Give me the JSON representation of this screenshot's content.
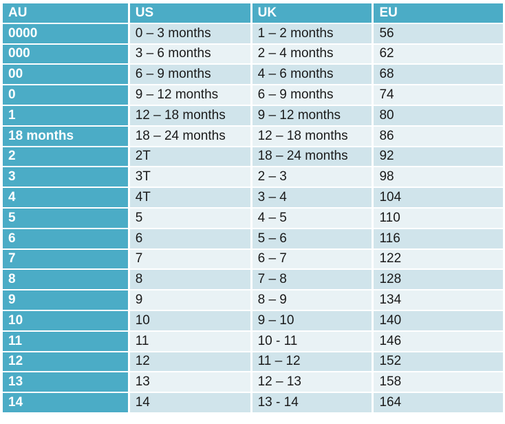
{
  "table": {
    "header": [
      "AU",
      "US",
      "UK",
      "EU"
    ],
    "rows": [
      [
        "0000",
        "0 – 3 months",
        "1 – 2 months",
        "56"
      ],
      [
        "000",
        "3 – 6 months",
        "2 – 4 months",
        "62"
      ],
      [
        "00",
        "6 – 9 months",
        "4 – 6 months",
        "68"
      ],
      [
        "0",
        "9 – 12 months",
        "6 – 9 months",
        "74"
      ],
      [
        "1",
        "12 – 18 months",
        "9 – 12 months",
        "80"
      ],
      [
        "18 months",
        "18 – 24 months",
        "12 – 18 months",
        "86"
      ],
      [
        "2",
        "2T",
        "18 – 24 months",
        "92"
      ],
      [
        "3",
        "3T",
        "2 – 3",
        "98"
      ],
      [
        "4",
        "4T",
        "3 – 4",
        "104"
      ],
      [
        "5",
        "5",
        "4 – 5",
        "110"
      ],
      [
        "6",
        "6",
        "5 – 6",
        "116"
      ],
      [
        "7",
        "7",
        "6 – 7",
        "122"
      ],
      [
        "8",
        "8",
        "7 – 8",
        "128"
      ],
      [
        "9",
        "9",
        "8 – 9",
        "134"
      ],
      [
        "10",
        "10",
        "9 – 10",
        "140"
      ],
      [
        "11",
        "11",
        "10 - 11",
        "146"
      ],
      [
        "12",
        "12",
        "11 – 12",
        "152"
      ],
      [
        "13",
        "13",
        "12 – 13",
        "158"
      ],
      [
        "14",
        "14",
        "13 - 14",
        "164"
      ]
    ]
  }
}
